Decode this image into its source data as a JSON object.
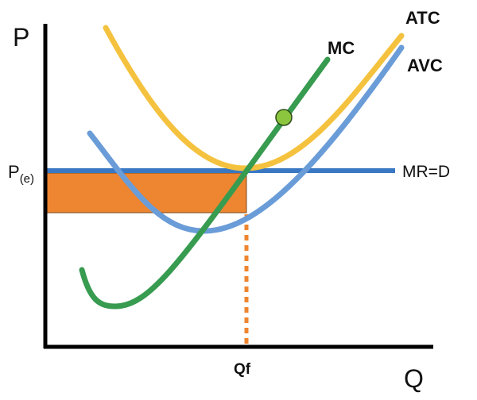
{
  "labels": {
    "y_axis": "P",
    "x_axis": "Q",
    "price_main": "P",
    "price_sub": "(e)",
    "mc": "MC",
    "atc": "ATC",
    "avc": "AVC",
    "mr": "MR=D",
    "qf": "Qf"
  },
  "colors": {
    "atc": "#F4C23E",
    "avc": "#6A9CD8",
    "mc": "#379B50",
    "mr": "#3A78C4",
    "loss_area": "#EE8530",
    "point": "#8CC63F",
    "axis": "#000000"
  }
}
